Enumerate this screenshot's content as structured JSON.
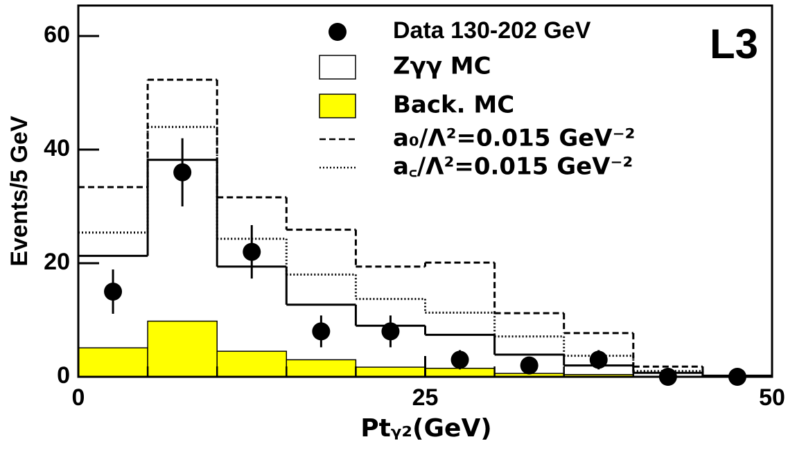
{
  "chart_data": {
    "type": "histogram",
    "annotation": "L3",
    "xlabel": "Ptᵧ₂(GeV)",
    "ylabel": "Events/5 GeV",
    "bins": [
      0,
      5,
      10,
      15,
      20,
      25,
      30,
      35,
      40,
      45,
      50
    ],
    "xlim": [
      0,
      50
    ],
    "xticks": [
      0,
      25,
      50
    ],
    "ylim": [
      0,
      65
    ],
    "yticks": [
      0,
      20,
      40,
      60
    ],
    "points": {
      "name": "Data 130-202 GeV",
      "color": "#000000",
      "x": [
        2.5,
        7.5,
        12.5,
        17.5,
        22.5,
        27.5,
        32.5,
        37.5,
        42.5,
        47.5
      ],
      "values": [
        15,
        36,
        22,
        8,
        8,
        3,
        2,
        3,
        0,
        0
      ],
      "errors": [
        3.9,
        6,
        4.7,
        2.8,
        2.8,
        1.7,
        1.4,
        1.7,
        0,
        0
      ]
    },
    "series": [
      {
        "name": "Zγγ MC",
        "style": "solid",
        "color": "#000000",
        "values": [
          21.3,
          38.2,
          19.4,
          12.7,
          9.0,
          7.4,
          3.9,
          2.0,
          0.7,
          0.2
        ]
      },
      {
        "name": "Back. MC",
        "style": "fill",
        "color": "#ffff00",
        "values": [
          5.1,
          9.8,
          4.5,
          3.0,
          1.7,
          1.5,
          0.6,
          0.4,
          0.1,
          0.1
        ]
      },
      {
        "name": "a₀/Λ²=0.015 GeV⁻²",
        "style": "dashed",
        "color": "#000000",
        "values": [
          33.4,
          52.3,
          31.6,
          25.9,
          19.4,
          20.1,
          11.2,
          7.7,
          1.8,
          0
        ]
      },
      {
        "name": "a꜀/Λ²=0.015 GeV⁻²",
        "style": "dotted",
        "color": "#000000",
        "values": [
          25.4,
          44.0,
          24.3,
          18.0,
          13.7,
          11.3,
          7.1,
          3.7,
          1.0,
          0
        ]
      }
    ]
  }
}
